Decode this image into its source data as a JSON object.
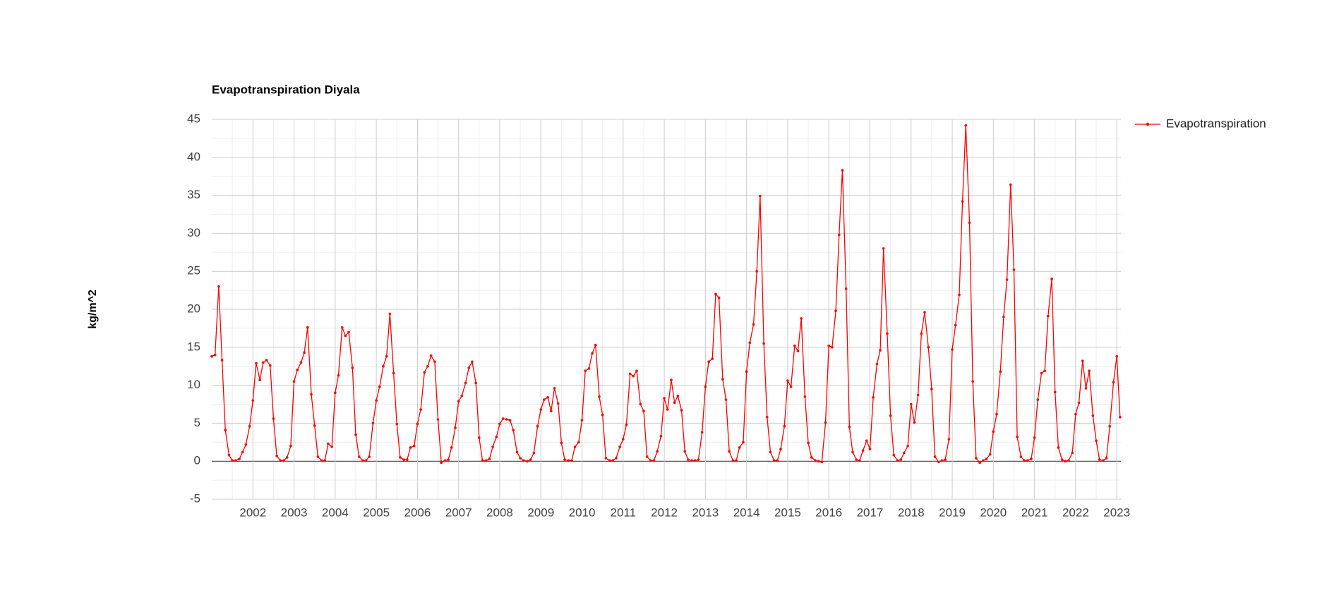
{
  "chart_data": {
    "type": "line",
    "title": "Evapotranspiration Diyala",
    "y_label": "kg/m^2",
    "xlim": [
      2001,
      2023.1
    ],
    "xticks": [
      2002,
      2003,
      2004,
      2005,
      2006,
      2007,
      2008,
      2009,
      2010,
      2011,
      2012,
      2013,
      2014,
      2015,
      2016,
      2017,
      2018,
      2019,
      2020,
      2021,
      2022,
      2023
    ],
    "ylim": [
      -5,
      45
    ],
    "yticks": [
      -5,
      0,
      5,
      10,
      15,
      20,
      25,
      30,
      35,
      40,
      45
    ],
    "grid": true,
    "legend": "right",
    "x": [
      2001,
      2001.08,
      2001.17,
      2001.25,
      2001.33,
      2001.42,
      2001.5,
      2001.58,
      2001.67,
      2001.75,
      2001.83,
      2001.92,
      2002,
      2002.08,
      2002.17,
      2002.25,
      2002.33,
      2002.42,
      2002.5,
      2002.58,
      2002.67,
      2002.75,
      2002.83,
      2002.92,
      2003,
      2003.08,
      2003.17,
      2003.25,
      2003.33,
      2003.42,
      2003.5,
      2003.58,
      2003.67,
      2003.75,
      2003.83,
      2003.92,
      2004,
      2004.08,
      2004.17,
      2004.25,
      2004.33,
      2004.42,
      2004.5,
      2004.58,
      2004.67,
      2004.75,
      2004.83,
      2004.92,
      2005,
      2005.08,
      2005.17,
      2005.25,
      2005.33,
      2005.42,
      2005.5,
      2005.58,
      2005.67,
      2005.75,
      2005.83,
      2005.92,
      2006,
      2006.08,
      2006.17,
      2006.25,
      2006.33,
      2006.42,
      2006.5,
      2006.58,
      2006.67,
      2006.75,
      2006.83,
      2006.92,
      2007,
      2007.08,
      2007.17,
      2007.25,
      2007.33,
      2007.42,
      2007.5,
      2007.58,
      2007.67,
      2007.75,
      2007.83,
      2007.92,
      2008,
      2008.08,
      2008.17,
      2008.25,
      2008.33,
      2008.42,
      2008.5,
      2008.58,
      2008.67,
      2008.75,
      2008.83,
      2008.92,
      2009,
      2009.08,
      2009.17,
      2009.25,
      2009.33,
      2009.42,
      2009.5,
      2009.58,
      2009.67,
      2009.75,
      2009.83,
      2009.92,
      2010,
      2010.08,
      2010.17,
      2010.25,
      2010.33,
      2010.42,
      2010.5,
      2010.58,
      2010.67,
      2010.75,
      2010.83,
      2010.92,
      2011,
      2011.08,
      2011.17,
      2011.25,
      2011.33,
      2011.42,
      2011.5,
      2011.58,
      2011.67,
      2011.75,
      2011.83,
      2011.92,
      2012,
      2012.08,
      2012.17,
      2012.25,
      2012.33,
      2012.42,
      2012.5,
      2012.58,
      2012.67,
      2012.75,
      2012.83,
      2012.92,
      2013,
      2013.08,
      2013.17,
      2013.25,
      2013.33,
      2013.42,
      2013.5,
      2013.58,
      2013.67,
      2013.75,
      2013.83,
      2013.92,
      2014,
      2014.08,
      2014.17,
      2014.25,
      2014.33,
      2014.42,
      2014.5,
      2014.58,
      2014.67,
      2014.75,
      2014.83,
      2014.92,
      2015,
      2015.08,
      2015.17,
      2015.25,
      2015.33,
      2015.42,
      2015.5,
      2015.58,
      2015.67,
      2015.75,
      2015.83,
      2015.92,
      2016,
      2016.08,
      2016.17,
      2016.25,
      2016.33,
      2016.42,
      2016.5,
      2016.58,
      2016.67,
      2016.75,
      2016.83,
      2016.92,
      2017,
      2017.08,
      2017.17,
      2017.25,
      2017.33,
      2017.42,
      2017.5,
      2017.58,
      2017.67,
      2017.75,
      2017.83,
      2017.92,
      2018,
      2018.08,
      2018.17,
      2018.25,
      2018.33,
      2018.42,
      2018.5,
      2018.58,
      2018.67,
      2018.75,
      2018.83,
      2018.92,
      2019,
      2019.08,
      2019.17,
      2019.25,
      2019.33,
      2019.42,
      2019.5,
      2019.58,
      2019.67,
      2019.75,
      2019.83,
      2019.92,
      2020,
      2020.08,
      2020.17,
      2020.25,
      2020.33,
      2020.42,
      2020.5,
      2020.58,
      2020.67,
      2020.75,
      2020.83,
      2020.92,
      2021,
      2021.08,
      2021.17,
      2021.25,
      2021.33,
      2021.42,
      2021.5,
      2021.58,
      2021.67,
      2021.75,
      2021.83,
      2021.92,
      2022,
      2022.08,
      2022.17,
      2022.25,
      2022.33,
      2022.42,
      2022.5,
      2022.58,
      2022.67,
      2022.75,
      2022.83,
      2022.92,
      2023,
      2023.08
    ],
    "series": [
      {
        "name": "Evapotranspiration",
        "color": "#ff0000",
        "values": [
          13.8,
          14,
          23,
          13.3,
          4.1,
          0.8,
          0.1,
          0.1,
          0.3,
          1.2,
          2.2,
          4.6,
          8,
          12.9,
          10.7,
          13,
          13.3,
          12.6,
          5.6,
          0.7,
          0.1,
          0.1,
          0.5,
          2.0,
          10.5,
          12,
          13,
          14.3,
          17.6,
          8.8,
          4.7,
          0.6,
          0.1,
          0.1,
          2.3,
          1.9,
          9,
          11.3,
          17.6,
          16.5,
          17,
          12.3,
          3.5,
          0.6,
          0.1,
          0.1,
          0.6,
          5,
          8,
          9.8,
          12.5,
          13.8,
          19.4,
          11.6,
          4.9,
          0.5,
          0.2,
          0.2,
          1.8,
          2.0,
          4.9,
          6.8,
          11.7,
          12.5,
          13.9,
          13.1,
          5.5,
          -0.2,
          0.1,
          0.2,
          1.8,
          4.4,
          7.9,
          8.6,
          10.3,
          12.3,
          13.1,
          10.3,
          3.1,
          0.1,
          0.1,
          0.3,
          1.9,
          3.2,
          4.9,
          5.6,
          5.5,
          5.4,
          4.1,
          1.2,
          0.4,
          0.1,
          0,
          0.2,
          1.1,
          4.6,
          6.8,
          8.1,
          8.4,
          6.6,
          9.6,
          7.6,
          2.4,
          0.2,
          0.1,
          0.1,
          1.9,
          2.5,
          5.4,
          11.9,
          12.2,
          14.2,
          15.3,
          8.5,
          6.1,
          0.4,
          0.1,
          0.1,
          0.4,
          1.9,
          2.9,
          4.8,
          11.5,
          11.2,
          11.9,
          7.5,
          6.6,
          0.6,
          0.1,
          0.1,
          1.3,
          3.3,
          8.3,
          6.8,
          10.7,
          7.7,
          8.6,
          6.7,
          1.3,
          0.2,
          0.1,
          0.1,
          0.2,
          3.8,
          9.8,
          13.1,
          13.5,
          22,
          21.5,
          10.8,
          8.1,
          1.3,
          0.1,
          0.1,
          1.8,
          2.5,
          11.8,
          15.6,
          18,
          25,
          34.9,
          15.5,
          5.8,
          1.2,
          0.1,
          0.1,
          1.6,
          4.6,
          10.6,
          9.8,
          15.2,
          14.5,
          18.8,
          8.5,
          2.4,
          0.5,
          0.1,
          0,
          -0.1,
          5.1,
          15.2,
          15,
          19.8,
          29.8,
          38.3,
          22.7,
          4.5,
          1.2,
          0.2,
          0.1,
          1.4,
          2.7,
          1.6,
          8.4,
          12.8,
          14.6,
          28,
          16.8,
          6,
          0.8,
          0.1,
          0.2,
          1.1,
          2.0,
          7.5,
          5.1,
          8.7,
          16.8,
          19.6,
          15,
          9.5,
          0.6,
          -0.1,
          0.1,
          0.2,
          2.9,
          14.7,
          17.9,
          21.9,
          34.2,
          44.2,
          31.4,
          10.5,
          0.4,
          -0.2,
          0.1,
          0.3,
          0.9,
          3.9,
          6.2,
          11.8,
          19,
          23.9,
          36.4,
          25.2,
          3.2,
          0.6,
          0.1,
          0.1,
          0.3,
          3.1,
          8.1,
          11.6,
          11.9,
          19.1,
          24,
          9.1,
          1.8,
          0.2,
          0,
          0.1,
          1.1,
          6.2,
          7.7,
          13.2,
          9.6,
          11.9,
          6,
          2.7,
          0.2,
          0.1,
          0.4,
          4.6,
          10.4,
          13.8,
          5.8
        ]
      }
    ]
  }
}
